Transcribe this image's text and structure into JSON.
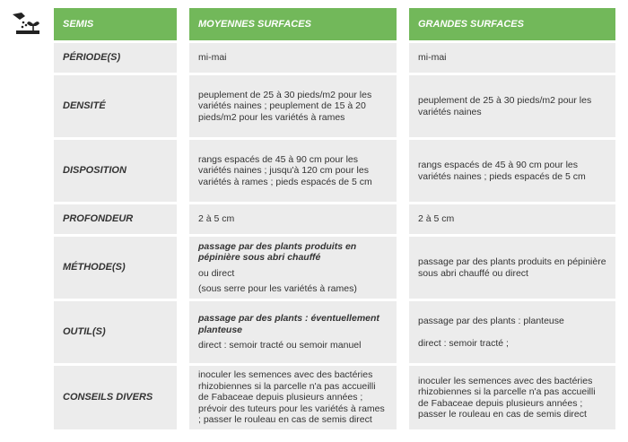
{
  "header": {
    "c1": "SEMIS",
    "c2": "MOYENNES SURFACES",
    "c3": "GRANDES SURFACES"
  },
  "rows": [
    {
      "label": "PÉRIODE(S)",
      "m": [
        "mi-mai"
      ],
      "g": [
        "mi-mai"
      ]
    },
    {
      "label": "DENSITÉ",
      "m": [
        "peuplement de 25 à 30 pieds/m2 pour les variétés naines ; peuplement de 15 à 20 pieds/m2 pour les variétés à rames"
      ],
      "g": [
        "peuplement de 25 à 30 pieds/m2 pour les variétés naines"
      ]
    },
    {
      "label": "DISPOSITION",
      "m": [
        "rangs espacés de 45 à 90 cm pour les variétés naines ; jusqu'à 120 cm pour les variétés à rames ; pieds espacés de 5 cm"
      ],
      "g": [
        "rangs espacés de 45 à 90 cm pour les variétés naines ; pieds espacés de 5 cm"
      ]
    },
    {
      "label": "PROFONDEUR",
      "m": [
        "2 à 5 cm"
      ],
      "g": [
        "2 à 5 cm"
      ]
    },
    {
      "label": "MÉTHODE(S)",
      "m": [
        "passage par des plants produits en pépinière sous abri chauffé",
        "ou direct",
        "(sous serre pour les variétés à rames)"
      ],
      "g": [
        "passage par des plants produits en pépinière sous abri chauffé ou direct"
      ]
    },
    {
      "label": "OUTIL(S)",
      "m": [
        "passage par des plants : éventuellement planteuse",
        "direct : semoir tracté ou semoir manuel"
      ],
      "g": [
        "passage par des plants : planteuse",
        "direct : semoir tracté ;"
      ]
    },
    {
      "label": "CONSEILS DIVERS",
      "m": [
        "inoculer les semences avec des bactéries rhizobiennes si la parcelle n'a pas accueilli de Fabaceae depuis plusieurs années ; prévoir des tuteurs pour les variétés à rames ; passer le rouleau en cas de semis direct"
      ],
      "g": [
        "inoculer les semences avec des bactéries rhizobiennes si la parcelle n'a pas accueilli de Fabaceae depuis plusieurs années ; passer le rouleau en cas de semis direct"
      ]
    }
  ],
  "icon": "sowing-icon",
  "colors": {
    "header": "#72b85a",
    "cell": "#ececec"
  }
}
